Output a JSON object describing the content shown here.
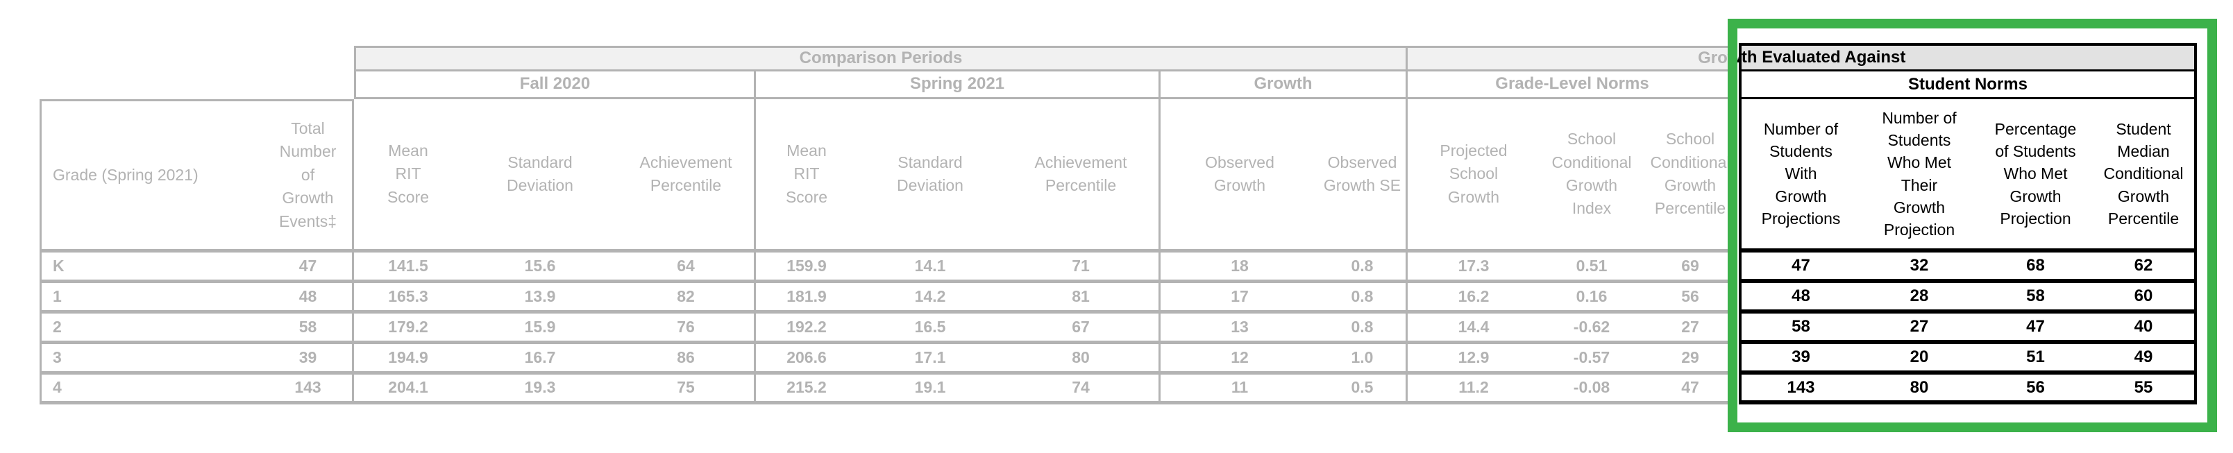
{
  "highlight": {
    "color": "#3cb24a"
  },
  "table": {
    "group_row": {
      "comparison_periods": "Comparison Periods",
      "growth_evaluated_against": "Growth Evaluated Against"
    },
    "subgroup_row": {
      "fall_2020": "Fall 2020",
      "spring_2021": "Spring 2021",
      "growth": "Growth",
      "grade_level_norms": "Grade-Level Norms",
      "student_norms": "Student Norms"
    },
    "column_headers": {
      "grade": "Grade (Spring 2021)",
      "total_growth_events": "Total Number of Growth Events‡",
      "fall_mean_rit": "Mean RIT Score",
      "fall_std_dev": "Standard Deviation",
      "fall_achievement_percentile": "Achievement Percentile",
      "spring_mean_rit": "Mean RIT Score",
      "spring_std_dev": "Standard Deviation",
      "spring_achievement_percentile": "Achievement Percentile",
      "observed_growth": "Observed Growth",
      "observed_growth_se": "Observed Growth SE",
      "projected_school_growth": "Projected School Growth",
      "school_conditional_growth_index": "School Conditional Growth Index",
      "school_conditional_growth_percentile": "School Conditional Growth Percentile",
      "num_students_with_projections": "Number of Students With Growth Projections",
      "num_students_met_projection": "Number of Students Who Met Their Growth Projection",
      "pct_students_met_projection": "Percentage of Students Who Met Growth Projection",
      "student_median_cgp": "Student Median Conditional Growth Percentile"
    },
    "rows": [
      {
        "grade": "K",
        "values": [
          "47",
          "141.5",
          "15.6",
          "64",
          "159.9",
          "14.1",
          "71",
          "18",
          "0.8",
          "17.3",
          "0.51",
          "69"
        ],
        "student_norms": [
          "47",
          "32",
          "68",
          "62"
        ]
      },
      {
        "grade": "1",
        "values": [
          "48",
          "165.3",
          "13.9",
          "82",
          "181.9",
          "14.2",
          "81",
          "17",
          "0.8",
          "16.2",
          "0.16",
          "56"
        ],
        "student_norms": [
          "48",
          "28",
          "58",
          "60"
        ]
      },
      {
        "grade": "2",
        "values": [
          "58",
          "179.2",
          "15.9",
          "76",
          "192.2",
          "16.5",
          "67",
          "13",
          "0.8",
          "14.4",
          "-0.62",
          "27"
        ],
        "student_norms": [
          "58",
          "27",
          "47",
          "40"
        ]
      },
      {
        "grade": "3",
        "values": [
          "39",
          "194.9",
          "16.7",
          "86",
          "206.6",
          "17.1",
          "80",
          "12",
          "1.0",
          "12.9",
          "-0.57",
          "29"
        ],
        "student_norms": [
          "39",
          "20",
          "51",
          "49"
        ]
      },
      {
        "grade": "4",
        "values": [
          "143",
          "204.1",
          "19.3",
          "75",
          "215.2",
          "19.1",
          "74",
          "11",
          "0.5",
          "11.2",
          "-0.08",
          "47"
        ],
        "student_norms": [
          "143",
          "80",
          "56",
          "55"
        ]
      }
    ]
  }
}
